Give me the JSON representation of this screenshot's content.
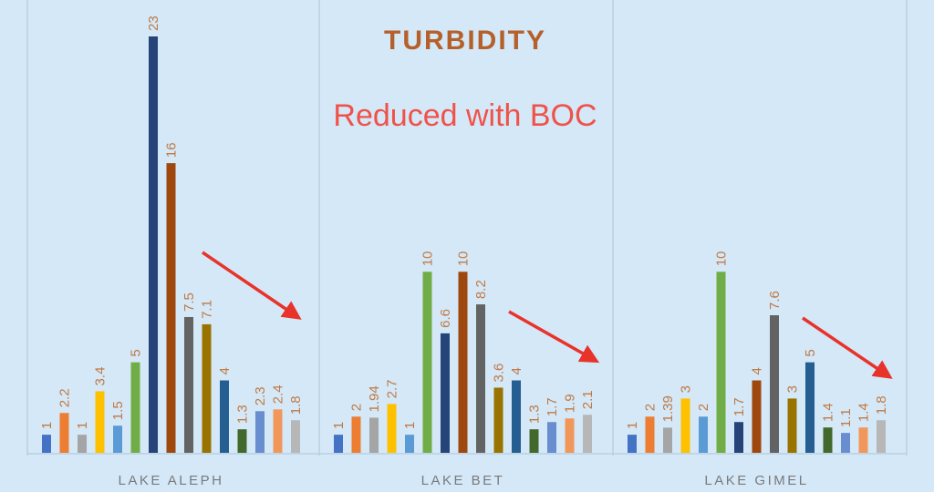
{
  "chart_data": {
    "type": "bar",
    "title": "TURBIDITY",
    "annotation": "Reduced with BOC",
    "groups": [
      {
        "name": "LAKE ALEPH",
        "labels": [
          "1",
          "2.2",
          "1",
          "3.4",
          "1.5",
          "5",
          "23",
          "16",
          "7.5",
          "7.1",
          "4",
          "1.3",
          "2.3",
          "2.4",
          "1.8"
        ],
        "values": [
          1,
          2.2,
          1,
          3.4,
          1.5,
          5,
          23,
          16,
          7.5,
          7.1,
          4,
          1.3,
          2.3,
          2.4,
          1.8
        ]
      },
      {
        "name": "LAKE BET",
        "labels": [
          "1",
          "2",
          "1.94",
          "2.7",
          "1",
          "10",
          "6.6",
          "10",
          "8.2",
          "3.6",
          "4",
          "1.3",
          "1.7",
          "1.9",
          "2.1"
        ],
        "values": [
          1,
          2,
          1.94,
          2.7,
          1,
          10,
          6.6,
          10,
          8.2,
          3.6,
          4,
          1.3,
          1.7,
          1.9,
          2.1
        ]
      },
      {
        "name": "LAKE GIMEL",
        "labels": [
          "1",
          "2",
          "1.39",
          "3",
          "2",
          "10",
          "1.7",
          "4",
          "7.6",
          "3",
          "5",
          "1.4",
          "1.1",
          "1.4",
          "1.8"
        ],
        "values": [
          1,
          2,
          1.39,
          3,
          2,
          10,
          1.7,
          4,
          7.6,
          3,
          5,
          1.4,
          1.1,
          1.4,
          1.8
        ]
      }
    ],
    "series_colors": [
      "#4472c4",
      "#ed7d31",
      "#a5a5a5",
      "#ffc000",
      "#5b9bd5",
      "#70ad47",
      "#264478",
      "#9e480e",
      "#636363",
      "#997300",
      "#255e91",
      "#43682b",
      "#698ed0",
      "#f1975a",
      "#b7b7b7"
    ],
    "colors": {
      "title": "#b5602a",
      "data_label": "#c07a45",
      "annotation": "#f0524a",
      "arrow": "#e8332a",
      "category_label": "#7a7a7a",
      "background": "#d4e8f8",
      "divider": "#b9cfe0"
    },
    "ylim": [
      0,
      23
    ],
    "grid": false,
    "legend": "none"
  }
}
